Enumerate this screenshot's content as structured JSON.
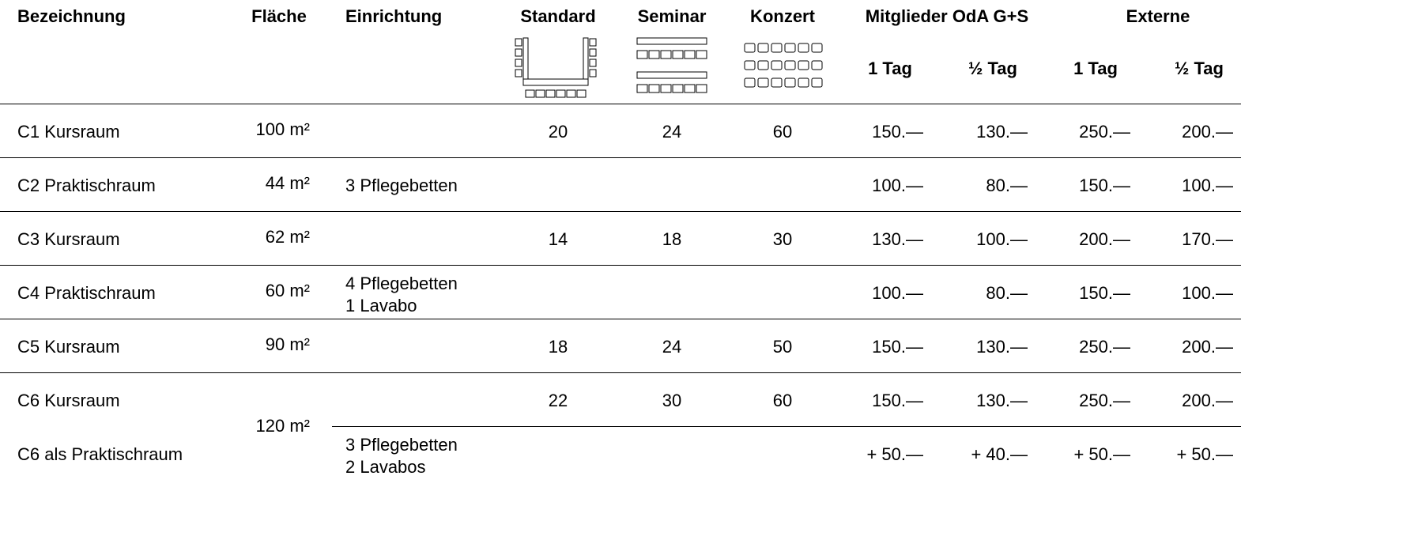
{
  "header": {
    "columns": [
      "Bezeichnung",
      "Fläche",
      "Einrichtung",
      "Standard",
      "Seminar",
      "Konzert"
    ],
    "groups": [
      "Mitglieder OdA G+S",
      "Externe"
    ],
    "subcolumns": [
      "1 Tag",
      "½ Tag",
      "1 Tag",
      "½ Tag"
    ]
  },
  "rows": [
    {
      "name": "C1 Kursraum",
      "area": "100 m²",
      "standard": 20,
      "seminar": 24,
      "konzert": 60,
      "prices": [
        "150.—",
        "130.—",
        "250.—",
        "200.—"
      ]
    },
    {
      "name": "C2 Praktischraum",
      "area": "44 m²",
      "equipment": [
        "3 Pflegebetten"
      ],
      "prices": [
        "100.—",
        "80.—",
        "150.—",
        "100.—"
      ]
    },
    {
      "name": "C3 Kursraum",
      "area": "62 m²",
      "standard": 14,
      "seminar": 18,
      "konzert": 30,
      "prices": [
        "130.—",
        "100.—",
        "200.—",
        "170.—"
      ]
    },
    {
      "name": "C4 Praktischraum",
      "area": "60 m²",
      "equipment": [
        "4 Pflegebetten",
        "1 Lavabo"
      ],
      "prices": [
        "100.—",
        "80.—",
        "150.—",
        "100.—"
      ]
    },
    {
      "name": "C5 Kursraum",
      "area": "90 m²",
      "standard": 18,
      "seminar": 24,
      "konzert": 50,
      "prices": [
        "150.—",
        "130.—",
        "250.—",
        "200.—"
      ]
    },
    {
      "name": "C6 Kursraum",
      "area": "120 m²",
      "standard": 22,
      "seminar": 30,
      "konzert": 60,
      "prices": [
        "150.—",
        "130.—",
        "250.—",
        "200.—"
      ]
    },
    {
      "name": "C6 als Praktischraum",
      "equipment": [
        "3 Pflegebetten",
        "2 Lavabos"
      ],
      "prices": [
        "+ 50.—",
        "+ 40.—",
        "+ 50.—",
        "+ 50.—"
      ]
    }
  ]
}
